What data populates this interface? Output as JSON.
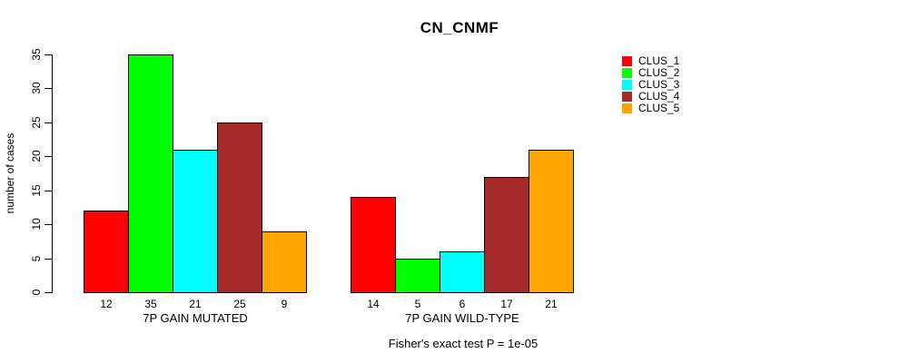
{
  "chart_data": {
    "type": "bar",
    "title": "CN_CNMF",
    "ylabel": "number of cases",
    "ylim": [
      0,
      35
    ],
    "yticks": [
      0,
      5,
      10,
      15,
      20,
      25,
      30,
      35
    ],
    "categories": [
      "CLUS_1",
      "CLUS_2",
      "CLUS_3",
      "CLUS_4",
      "CLUS_5"
    ],
    "colors": [
      "#ff0000",
      "#00ff00",
      "#00ffff",
      "#a52a2a",
      "#ffa500"
    ],
    "groups": [
      {
        "label": "7P GAIN MUTATED",
        "values": [
          12,
          35,
          21,
          25,
          9
        ]
      },
      {
        "label": "7P GAIN WILD-TYPE",
        "values": [
          14,
          5,
          6,
          17,
          21
        ]
      }
    ],
    "legend": {
      "position": "right",
      "entries": [
        "CLUS_1",
        "CLUS_2",
        "CLUS_3",
        "CLUS_4",
        "CLUS_5"
      ]
    },
    "footnote": "Fisher's exact test P = 1e-05",
    "grid": false,
    "background": "#ffffff"
  }
}
